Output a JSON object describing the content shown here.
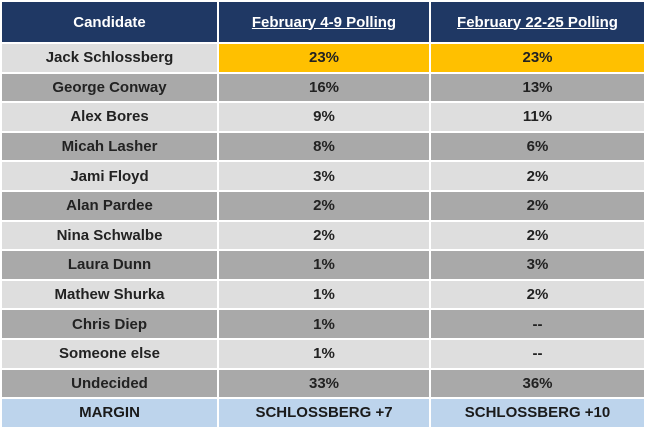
{
  "table": {
    "header": [
      "Candidate",
      "February 4-9 Polling",
      "February 22-25 Polling"
    ],
    "rows": [
      [
        "Jack Schlossberg",
        "23%",
        "23%"
      ],
      [
        "George Conway",
        "16%",
        "13%"
      ],
      [
        "Alex Bores",
        "9%",
        "11%"
      ],
      [
        "Micah Lasher",
        "8%",
        "6%"
      ],
      [
        "Jami Floyd",
        "3%",
        "2%"
      ],
      [
        "Alan Pardee",
        "2%",
        "2%"
      ],
      [
        "Nina Schwalbe",
        "2%",
        "2%"
      ],
      [
        "Laura Dunn",
        "1%",
        "3%"
      ],
      [
        "Mathew Shurka",
        "1%",
        "2%"
      ],
      [
        "Chris Diep",
        "1%",
        "--"
      ],
      [
        "Someone else",
        "1%",
        "--"
      ],
      [
        "Undecided",
        "33%",
        "36%"
      ]
    ],
    "footer": [
      "MARGIN",
      "SCHLOSSBERG +7",
      "SCHLOSSBERG +10"
    ]
  }
}
